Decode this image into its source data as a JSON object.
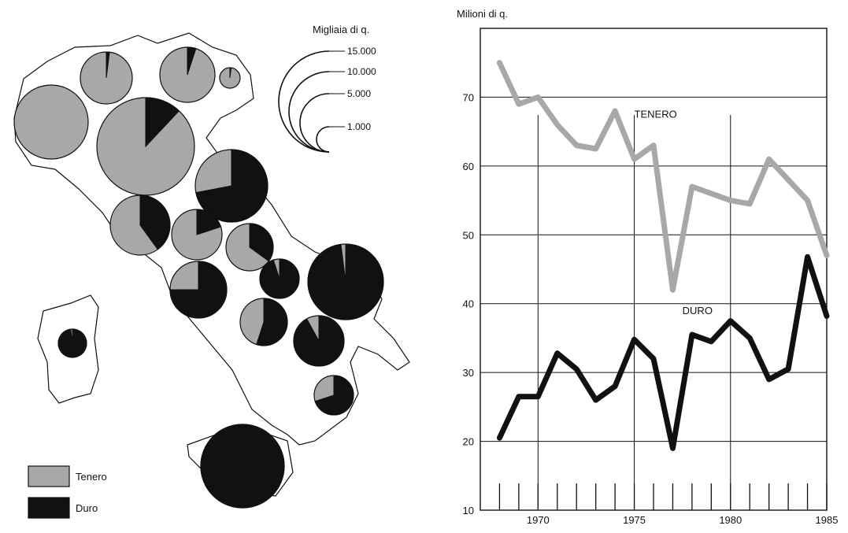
{
  "map": {
    "size_scale_title": "Migliaia di q.",
    "size_scale_values": [
      "15.000",
      "10.000",
      "5.000",
      "1.000"
    ],
    "legend": [
      {
        "label": "Tenero",
        "color": "#a8a8a8"
      },
      {
        "label": "Duro",
        "color": "#111111"
      }
    ]
  },
  "chart_data": {
    "type": "line",
    "ylabel": "Milioni di q.",
    "ylim": [
      10,
      80
    ],
    "xlim": [
      1967,
      1985
    ],
    "y_ticks": [
      "10",
      "20",
      "30",
      "40",
      "50",
      "60",
      "70"
    ],
    "x_ticks": [
      "1970",
      "1975",
      "1980",
      "1985"
    ],
    "x": [
      1968,
      1969,
      1970,
      1971,
      1972,
      1973,
      1974,
      1975,
      1976,
      1977,
      1978,
      1979,
      1980,
      1981,
      1982,
      1983,
      1984,
      1985
    ],
    "series": [
      {
        "name": "TENERO",
        "color": "#a8a8a8",
        "values": [
          75,
          69,
          70,
          66,
          63,
          62.5,
          68,
          61,
          63,
          42,
          57,
          56,
          55,
          54.5,
          61,
          58,
          55,
          47
        ]
      },
      {
        "name": "DURO",
        "color": "#111111",
        "values": [
          20.5,
          26.5,
          26.5,
          32.8,
          30.5,
          26,
          28,
          34.8,
          32,
          19,
          35.5,
          34.5,
          37.5,
          35,
          29,
          30.5,
          46.8,
          38.2
        ]
      }
    ]
  }
}
